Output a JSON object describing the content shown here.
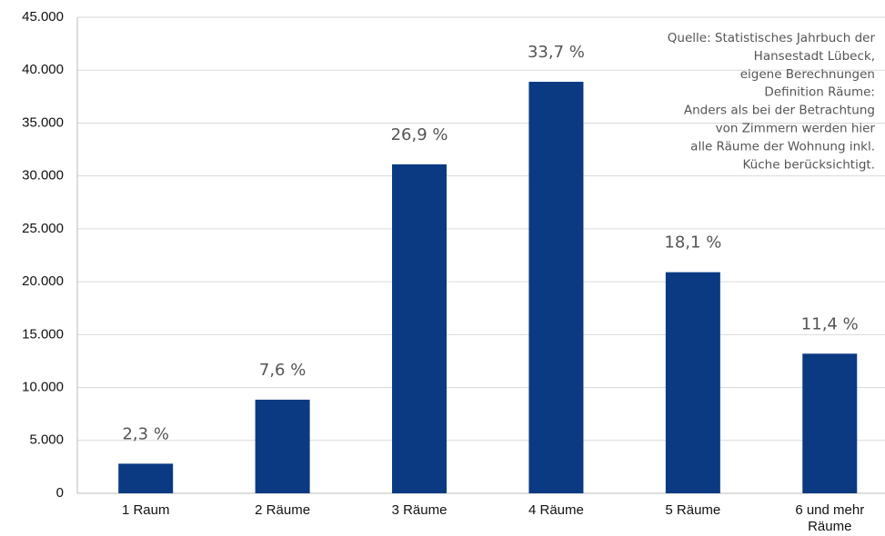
{
  "chart_data": {
    "type": "bar",
    "categories": [
      "1 Raum",
      "2 Räume",
      "3 Räume",
      "4 Räume",
      "5 Räume",
      "6 und mehr Räume"
    ],
    "values": [
      2800,
      8850,
      31100,
      38900,
      20900,
      13200
    ],
    "percent_labels": [
      "2,3 %",
      "7,6 %",
      "26,9 %",
      "33,7 %",
      "18,1 %",
      "11,4 %"
    ],
    "color": "#0b3a82",
    "ylim": [
      0,
      45000
    ],
    "yticks": [
      0,
      {
        "value": 5000,
        "label": "5.000"
      },
      {
        "value": 10000,
        "label": "10.000"
      },
      {
        "value": 15000,
        "label": "15.000"
      },
      {
        "value": 20000,
        "label": "20.000"
      },
      {
        "value": 25000,
        "label": "25.000"
      },
      {
        "value": 30000,
        "label": "30.000"
      },
      {
        "value": 35000,
        "label": "35.000"
      },
      {
        "value": 40000,
        "label": "40.000"
      },
      {
        "value": 45000,
        "label": "45.000"
      }
    ],
    "grid": true,
    "note": [
      "Quelle: Statistisches Jahrbuch der",
      "Hansestadt Lübeck,",
      "eigene Berechnungen",
      "Definition Räume:",
      "Anders als bei der Betrachtung",
      "von Zimmern werden hier",
      "alle Räume der Wohnung inkl.",
      "Küche berücksichtigt."
    ]
  }
}
